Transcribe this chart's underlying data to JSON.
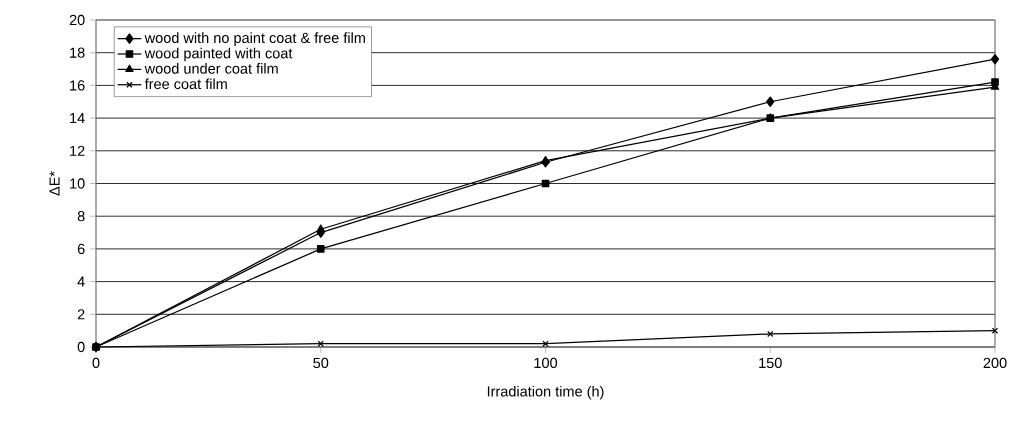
{
  "chart_data": {
    "type": "line",
    "xlabel": "Irradiation time (h)",
    "ylabel": "ΔE*",
    "x": [
      0,
      50,
      100,
      150,
      200
    ],
    "series": [
      {
        "name": "wood with no paint coat & free film",
        "color": "#000000",
        "marker": "diamond",
        "values": [
          0,
          7,
          11.3,
          15,
          17.6
        ]
      },
      {
        "name": "wood painted with coat",
        "color": "#000000",
        "marker": "square",
        "values": [
          0,
          6,
          10,
          14,
          16.2
        ]
      },
      {
        "name": "wood under coat film",
        "color": "#000000",
        "marker": "triangle",
        "values": [
          0,
          7.2,
          11.4,
          14,
          15.9
        ]
      },
      {
        "name": "free coat film",
        "color": "#000000",
        "marker": "cross",
        "values": [
          0,
          0.2,
          0.2,
          0.8,
          1.0
        ]
      }
    ],
    "xlim": [
      0,
      200
    ],
    "xticks": [
      0,
      50,
      100,
      150,
      200
    ],
    "ylim": [
      0,
      20
    ],
    "yticks": [
      0,
      2,
      4,
      6,
      8,
      10,
      12,
      14,
      16,
      18,
      20
    ],
    "grid": "y",
    "legend": "top left",
    "line_style": "solid"
  }
}
